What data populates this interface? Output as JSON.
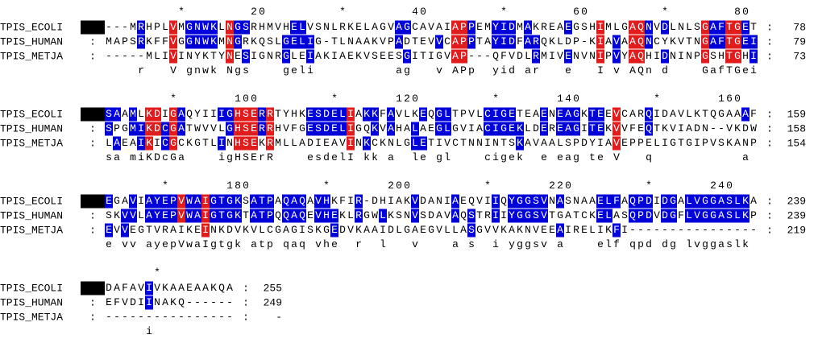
{
  "separator": ":",
  "blocks": [
    {
      "ruler": "         *        20         *        40         *        60         *        80",
      "rows": [
        {
          "name": "TPIS_ECOLI",
          "sequence": "---MRHPLVMGNWKLNGSRHMVHELVSNLRKELAGVAGCAVAIAPPEMYIDMAKREAEGSHIMLGAQNVDLNLSGAFTGET",
          "end": 78
        },
        {
          "name": "TPIS_HUMAN",
          "sequence": "MAPSRKFFVGGNWKMNGRKQSLGELIG-TLNAAKVPADTEVVCAPPTAYIDFARQKLDP-KIAVAAQNCYKVTNGAFTGEI",
          "end": 79
        },
        {
          "name": "TPIS_METJA",
          "sequence": "-----MLIVINYKTYNESIGNRGLEIAKIAEKVSEESGITIGVAP---QFVDLRMIVENVNIPVYAQHIDNINPGSHTGHI",
          "end": 73
        }
      ],
      "consensus": "    r   V gnwk Ngs    geli          ag   v APp  yid ar   e   I v AQn d    GafTGei"
    },
    {
      "ruler": "        *       100         *       120         *       140         *       160",
      "rows": [
        {
          "name": "TPIS_ECOLI",
          "sequence": "SAAMLKDIGAQYIIIGHSERRTYHKESDELIAKKFAVLKEQGLTPVLCIGETEAENEAGKTEEVCARQIDAVLKTQGAAAF",
          "end": 159
        },
        {
          "name": "TPIS_HUMAN",
          "sequence": "SPGMIKDCGATWVVLGHSERRHVFGESDELIGQKVAHALAEGLGVIACIGEKLDEREAGITEKVVFEQTKVIADN--VKDW",
          "end": 158
        },
        {
          "name": "TPIS_METJA",
          "sequence": "LAEAIKICGCKGTLINHSEKRMLLADIEAVINKCKNLGLETIVCTNNINTSKAVAALSPDYIAVEPPELIGTGIPVSKANP",
          "end": 154
        }
      ],
      "consensus": "sa miKDcGa    igHSErR    esdelI kk a  le gl    cigek  e eag te V   q           a"
    },
    {
      "ruler": "       *       180         *       200         *       220         *       240",
      "rows": [
        {
          "name": "TPIS_ECOLI",
          "sequence": "EGAVIAYEPVWAIGTGKSATPAQAQAVHKFIR-DHIAKVDANIAEQVIIQYGGSVNASNAAELFAQPDIDGALVGGASLKA",
          "end": 239
        },
        {
          "name": "TPIS_HUMAN",
          "sequence": "SKVVLAYEPVWAIGTGKTATPQQAQEVHEKLRGWLKSNVSDAVAQSTRIIYGGSVTGATCKELASQPDVDGFLVGGASLKP",
          "end": 239
        },
        {
          "name": "TPIS_METJA",
          "sequence": "EVVEGTVRAIKEINKDVKVLCGAGISKGEDVKAAIDLGAEGVLLASGVVKAKNVEEAIRELIKFI----------------",
          "end": 219
        }
      ],
      "consensus": "e vv ayepVwaIgtgk atp qaq vhe  r  l   v    a s  i yggsv a    elf qpd dg lvggaslk"
    },
    {
      "ruler": "      *",
      "rows": [
        {
          "name": "TPIS_ECOLI",
          "sequence": "DAFAVIVKAAEAAKQA",
          "end": 255
        },
        {
          "name": "TPIS_HUMAN",
          "sequence": "EFVDIINAKQ------",
          "end": 249
        },
        {
          "name": "TPIS_METJA",
          "sequence": "----------------",
          "end": "-"
        }
      ],
      "consensus": "     i"
    }
  ]
}
